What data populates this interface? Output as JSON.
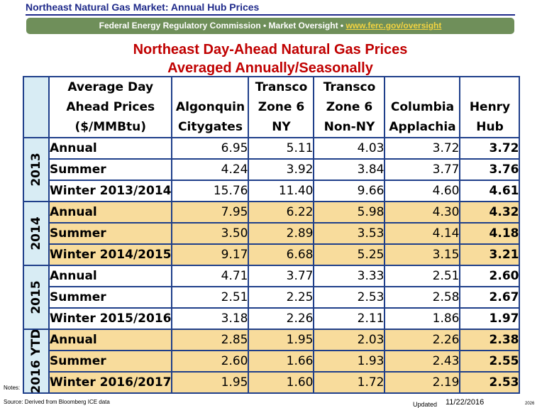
{
  "header": {
    "title": "Northeast Natural Gas Market: Annual Hub Prices",
    "banner_text": "Federal Energy Regulatory Commission • Market Oversight • ",
    "banner_link": "www.ferc.gov/oversight"
  },
  "main_title": {
    "line1": "Northeast Day-Ahead Natural Gas Prices",
    "line2": "Averaged Annually/Seasonally"
  },
  "table": {
    "columns": {
      "label": [
        "Average Day",
        "Ahead Prices",
        "($/MMBtu)"
      ],
      "algonquin": [
        "Algonquin",
        "Citygates"
      ],
      "transco_ny": [
        "Transco",
        "Zone 6",
        "NY"
      ],
      "transco_nonny": [
        "Transco",
        "Zone 6",
        "Non-NY"
      ],
      "columbia": [
        "Columbia",
        "Applachia"
      ],
      "henry": [
        "Henry",
        "Hub"
      ]
    },
    "groups": [
      {
        "year": "2013",
        "rows": [
          {
            "label": "Annual",
            "algonquin": "6.95",
            "transco_ny": "5.11",
            "transco_nonny": "4.03",
            "columbia": "3.72",
            "henry": "3.72"
          },
          {
            "label": "Summer",
            "algonquin": "4.24",
            "transco_ny": "3.92",
            "transco_nonny": "3.84",
            "columbia": "3.77",
            "henry": "3.76"
          },
          {
            "label": "Winter 2013/2014",
            "algonquin": "15.76",
            "transco_ny": "11.40",
            "transco_nonny": "9.66",
            "columbia": "4.60",
            "henry": "4.61"
          }
        ]
      },
      {
        "year": "2014",
        "rows": [
          {
            "label": "Annual",
            "algonquin": "7.95",
            "transco_ny": "6.22",
            "transco_nonny": "5.98",
            "columbia": "4.30",
            "henry": "4.32"
          },
          {
            "label": "Summer",
            "algonquin": "3.50",
            "transco_ny": "2.89",
            "transco_nonny": "3.53",
            "columbia": "4.14",
            "henry": "4.18"
          },
          {
            "label": "Winter 2014/2015",
            "algonquin": "9.17",
            "transco_ny": "6.68",
            "transco_nonny": "5.25",
            "columbia": "3.15",
            "henry": "3.21"
          }
        ]
      },
      {
        "year": "2015",
        "rows": [
          {
            "label": "Annual",
            "algonquin": "4.71",
            "transco_ny": "3.77",
            "transco_nonny": "3.33",
            "columbia": "2.51",
            "henry": "2.60"
          },
          {
            "label": "Summer",
            "algonquin": "2.51",
            "transco_ny": "2.25",
            "transco_nonny": "2.53",
            "columbia": "2.58",
            "henry": "2.67"
          },
          {
            "label": "Winter 2015/2016",
            "algonquin": "3.18",
            "transco_ny": "2.26",
            "transco_nonny": "2.11",
            "columbia": "1.86",
            "henry": "1.97"
          }
        ]
      },
      {
        "year": "2016 YTD",
        "rows": [
          {
            "label": "Annual",
            "algonquin": "2.85",
            "transco_ny": "1.95",
            "transco_nonny": "2.03",
            "columbia": "2.26",
            "henry": "2.38"
          },
          {
            "label": "Summer",
            "algonquin": "2.60",
            "transco_ny": "1.66",
            "transco_nonny": "1.93",
            "columbia": "2.43",
            "henry": "2.55"
          },
          {
            "label": "Winter 2016/2017",
            "algonquin": "1.95",
            "transco_ny": "1.60",
            "transco_nonny": "1.72",
            "columbia": "2.19",
            "henry": "2.53"
          }
        ]
      }
    ]
  },
  "footer": {
    "notes": "Notes:",
    "source": "Source: Derived from  Bloomberg ICE data",
    "updated_label": "Updated",
    "updated_date": "11/22/2016",
    "page_code": "2026"
  },
  "colors": {
    "title_blue": "#1f2a8a",
    "banner_green": "#6f8f5a",
    "link_yellow": "#f2d341",
    "heading_red": "#c00000",
    "year_band_blue": "#d8ecf4",
    "tan_band": "#f8dc9c",
    "border_blue": "#1f3f8a"
  }
}
